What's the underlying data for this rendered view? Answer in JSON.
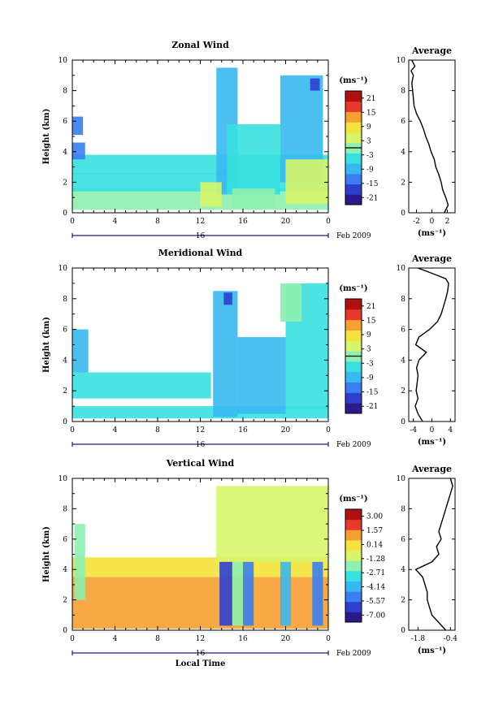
{
  "figure": {
    "panels": [
      {
        "title": "Zonal Wind",
        "ylabel": "Height (km)",
        "yticks": [
          "0",
          "2",
          "4",
          "6",
          "8",
          "10"
        ],
        "xticks": [
          "0",
          "4",
          "8",
          "12",
          "16",
          "20",
          "0"
        ],
        "day_label": "16",
        "date_label": "Feb 2009",
        "colorbar": {
          "unit_label": "(ms⁻¹)",
          "ticks": [
            "21",
            "15",
            "9",
            "3",
            "-3",
            "-9",
            "-15",
            "-21"
          ],
          "zero_level": "0"
        },
        "avg": {
          "title": "Average",
          "xticks": [
            "-2",
            "0",
            "2"
          ],
          "yticks": [
            "0",
            "2",
            "4",
            "6",
            "8",
            "10"
          ],
          "xlabel": "(ms⁻¹)"
        }
      },
      {
        "title": "Meridional Wind",
        "ylabel": "Height (km)",
        "yticks": [
          "0",
          "2",
          "4",
          "6",
          "8",
          "10"
        ],
        "xticks": [
          "0",
          "4",
          "8",
          "12",
          "16",
          "20",
          "0"
        ],
        "day_label": "16",
        "date_label": "Feb 2009",
        "colorbar": {
          "unit_label": "(ms⁻¹)",
          "ticks": [
            "21",
            "15",
            "9",
            "3",
            "-3",
            "-9",
            "-15",
            "-21"
          ],
          "zero_level": "0"
        },
        "avg": {
          "title": "Average",
          "xticks": [
            "-4",
            "0",
            "4"
          ],
          "yticks": [
            "0",
            "2",
            "4",
            "6",
            "8",
            "10"
          ],
          "xlabel": "(ms⁻¹)"
        }
      },
      {
        "title": "Vertical Wind",
        "ylabel": "Height (km)",
        "yticks": [
          "0",
          "2",
          "4",
          "6",
          "8",
          "10"
        ],
        "xticks": [
          "0",
          "4",
          "8",
          "12",
          "16",
          "20",
          "0"
        ],
        "day_label": "16",
        "date_label": "Feb 2009",
        "xlabel": "Local Time",
        "colorbar": {
          "unit_label": "(ms⁻¹)",
          "ticks": [
            "3.00",
            "1.57",
            "0.14",
            "-1.28",
            "-2.71",
            "-4.14",
            "-5.57",
            "-7.00"
          ]
        },
        "avg": {
          "title": "Average",
          "xticks": [
            "-1.8",
            "-0.4"
          ],
          "yticks": [
            "0",
            "2",
            "4",
            "6",
            "8",
            "10"
          ],
          "xlabel": "(ms⁻¹)"
        }
      }
    ]
  },
  "colors": {
    "colormap": [
      "#2b1a8a",
      "#2e3fcf",
      "#3a7ef2",
      "#38b8f0",
      "#39e0e0",
      "#8ff0b0",
      "#d8f56a",
      "#f5e23a",
      "#f5a030",
      "#e83a2a",
      "#b01010"
    ],
    "axis": "#000000",
    "day_bar": "#1a1a7a"
  },
  "chart_data": [
    {
      "type": "heatmap",
      "title": "Zonal Wind",
      "xlabel": "",
      "ylabel": "Height (km)",
      "x_unit": "local time (h), 16 Feb 2009",
      "xlim": [
        0,
        24
      ],
      "ylim": [
        0,
        10
      ],
      "clim": [
        -24,
        24
      ],
      "zero_contour": true,
      "blocks": [
        {
          "x": [
            0,
            24
          ],
          "y": [
            0.2,
            1.6
          ],
          "v": 0
        },
        {
          "x": [
            0,
            24
          ],
          "y": [
            1.4,
            2.6
          ],
          "v": -4
        },
        {
          "x": [
            0,
            24
          ],
          "y": [
            2.5,
            3.8
          ],
          "v": -6
        },
        {
          "x": [
            0,
            1.2
          ],
          "y": [
            3.5,
            4.6
          ],
          "v": -12
        },
        {
          "x": [
            0,
            1.0
          ],
          "y": [
            5.1,
            6.3
          ],
          "v": -12
        },
        {
          "x": [
            13.5,
            15.5
          ],
          "y": [
            1.2,
            9.5
          ],
          "v": -8
        },
        {
          "x": [
            14.5,
            19.5
          ],
          "y": [
            1.2,
            5.8
          ],
          "v": -5
        },
        {
          "x": [
            19.5,
            23.5
          ],
          "y": [
            2.0,
            9.0
          ],
          "v": -9
        },
        {
          "x": [
            22.3,
            23.2
          ],
          "y": [
            8.0,
            8.8
          ],
          "v": -19
        },
        {
          "x": [
            20.0,
            24.0
          ],
          "y": [
            0.6,
            3.5
          ],
          "v": 3
        },
        {
          "x": [
            12.0,
            14.0
          ],
          "y": [
            0.4,
            2.0
          ],
          "v": 3
        },
        {
          "x": [
            15.0,
            19.0
          ],
          "y": [
            0.3,
            1.6
          ],
          "v": 2
        }
      ],
      "profile": {
        "xlim": [
          -3,
          3
        ],
        "heights": [
          0,
          0.5,
          1,
          1.5,
          2,
          2.5,
          3,
          3.5,
          4,
          4.5,
          5,
          5.5,
          6,
          6.5,
          7,
          7.5,
          8,
          8.5,
          9,
          9.3,
          9.6,
          10
        ],
        "values": [
          1.6,
          2.1,
          1.8,
          1.4,
          1.2,
          0.9,
          0.5,
          0.3,
          -0.1,
          -0.4,
          -0.8,
          -1.1,
          -1.5,
          -2.0,
          -2.3,
          -2.4,
          -2.5,
          -2.6,
          -2.4,
          -2.7,
          -2.2,
          -2.6
        ]
      }
    },
    {
      "type": "heatmap",
      "title": "Meridional Wind",
      "xlabel": "",
      "ylabel": "Height (km)",
      "x_unit": "local time (h), 16 Feb 2009",
      "xlim": [
        0,
        24
      ],
      "ylim": [
        0,
        10
      ],
      "clim": [
        -24,
        24
      ],
      "zero_contour": true,
      "blocks": [
        {
          "x": [
            0,
            24
          ],
          "y": [
            0.2,
            1.0
          ],
          "v": -3
        },
        {
          "x": [
            0,
            13
          ],
          "y": [
            1.5,
            3.2
          ],
          "v": -5
        },
        {
          "x": [
            0,
            1.5
          ],
          "y": [
            3.2,
            6.0
          ],
          "v": -7
        },
        {
          "x": [
            13.2,
            15.5
          ],
          "y": [
            0.3,
            8.5
          ],
          "v": -10
        },
        {
          "x": [
            15.5,
            20.0
          ],
          "y": [
            0.5,
            5.5
          ],
          "v": -8
        },
        {
          "x": [
            20.0,
            24.0
          ],
          "y": [
            0.8,
            9.0
          ],
          "v": -6
        },
        {
          "x": [
            14.2,
            15.0
          ],
          "y": [
            7.6,
            8.4
          ],
          "v": -19
        },
        {
          "x": [
            19.5,
            21.5
          ],
          "y": [
            6.5,
            9.0
          ],
          "v": 1
        }
      ],
      "profile": {
        "xlim": [
          -5,
          5
        ],
        "heights": [
          0,
          0.5,
          1,
          1.5,
          2,
          2.5,
          3,
          3.5,
          4,
          4.5,
          5,
          5.5,
          6,
          6.5,
          7,
          7.5,
          8,
          8.5,
          9,
          9.3,
          9.6,
          10
        ],
        "values": [
          -2.0,
          -3.0,
          -3.6,
          -3.0,
          -3.4,
          -3.2,
          -3.0,
          -3.3,
          -2.8,
          -1.2,
          -3.5,
          -2.8,
          -0.5,
          1.2,
          2.0,
          2.5,
          3.0,
          3.4,
          3.6,
          3.0,
          0.5,
          -3.0
        ]
      }
    },
    {
      "type": "heatmap",
      "title": "Vertical Wind",
      "xlabel": "Local Time",
      "ylabel": "Height (km)",
      "x_unit": "local time (h), 16 Feb 2009",
      "xlim": [
        0,
        24
      ],
      "ylim": [
        0,
        10
      ],
      "clim": [
        -7.0,
        3.0
      ],
      "zero_contour": false,
      "blocks": [
        {
          "x": [
            0,
            24
          ],
          "y": [
            0.1,
            3.5
          ],
          "v": 0.3
        },
        {
          "x": [
            0,
            24
          ],
          "y": [
            3.5,
            4.8
          ],
          "v": 0.0
        },
        {
          "x": [
            0.2,
            1.2
          ],
          "y": [
            2.0,
            7.0
          ],
          "v": -2.0
        },
        {
          "x": [
            13.5,
            24
          ],
          "y": [
            4.5,
            9.5
          ],
          "v": -1.5
        },
        {
          "x": [
            13.8,
            15.0
          ],
          "y": [
            0.3,
            4.5
          ],
          "v": -6.0
        },
        {
          "x": [
            16.0,
            17.0
          ],
          "y": [
            0.3,
            4.5
          ],
          "v": -4.5
        },
        {
          "x": [
            19.5,
            20.5
          ],
          "y": [
            0.3,
            4.5
          ],
          "v": -3.5
        },
        {
          "x": [
            22.5,
            23.5
          ],
          "y": [
            0.3,
            4.5
          ],
          "v": -4.5
        },
        {
          "x": [
            15.0,
            16.0
          ],
          "y": [
            0.3,
            4.5
          ],
          "v": -2.0
        }
      ],
      "profile": {
        "xlim": [
          -2.2,
          -0.2
        ],
        "heights": [
          0,
          0.5,
          1,
          1.5,
          2,
          2.5,
          3,
          3.5,
          4,
          4.5,
          5,
          5.5,
          6,
          6.5,
          7,
          7.5,
          8,
          8.5,
          9,
          9.5,
          10
        ],
        "values": [
          -0.6,
          -0.9,
          -1.2,
          -1.3,
          -1.4,
          -1.4,
          -1.5,
          -1.6,
          -1.9,
          -1.2,
          -0.9,
          -1.0,
          -0.8,
          -0.9,
          -0.8,
          -0.7,
          -0.6,
          -0.5,
          -0.4,
          -0.3,
          -0.4
        ]
      }
    }
  ]
}
